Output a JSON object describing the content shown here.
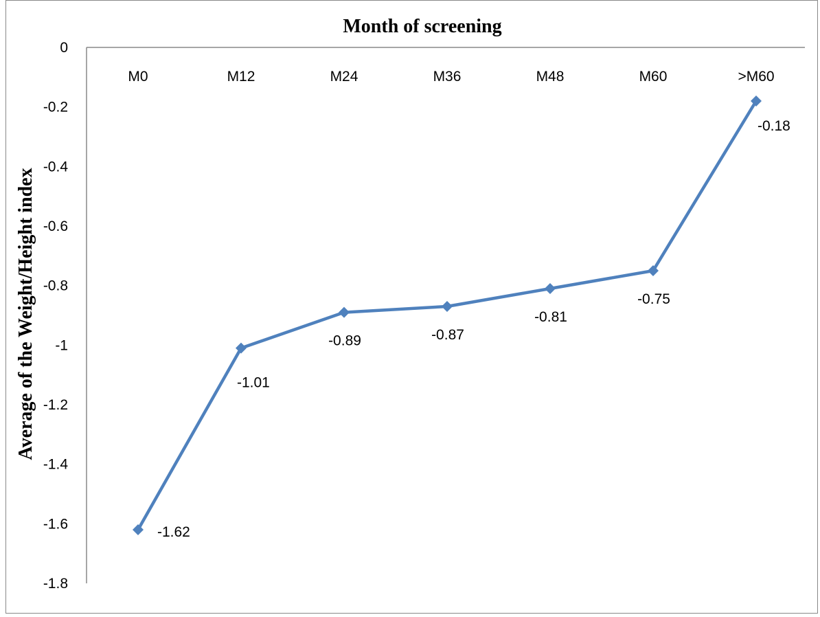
{
  "chart_data": {
    "type": "line",
    "title": "Month of screening",
    "xlabel": "",
    "ylabel": "Average of the Weight/Height  index",
    "categories": [
      "M0",
      "M12",
      "M24",
      "M36",
      "M48",
      "M60",
      ">M60"
    ],
    "series": [
      {
        "values": [
          -1.62,
          -1.01,
          -0.89,
          -0.87,
          -0.81,
          -0.75,
          -0.18
        ],
        "labels": [
          "-1.62",
          "-1.01",
          "-0.89",
          "-0.87",
          "-0.81",
          "-0.75",
          "-0.18"
        ],
        "color": "#4f81bd",
        "marker": "diamond"
      }
    ],
    "ylim": [
      -1.8,
      0
    ],
    "yticks": [
      0,
      -0.2,
      -0.4,
      -0.6,
      -0.8,
      -1,
      -1.2,
      -1.4,
      -1.6,
      -1.8
    ],
    "ytick_labels": [
      "0",
      "-0.2",
      "-0.4",
      "-0.6",
      "-0.8",
      "-1",
      "-1.2",
      "-1.4",
      "-1.6",
      "-1.8"
    ],
    "x_axis_position": "top",
    "grid": false,
    "legend": "none"
  }
}
